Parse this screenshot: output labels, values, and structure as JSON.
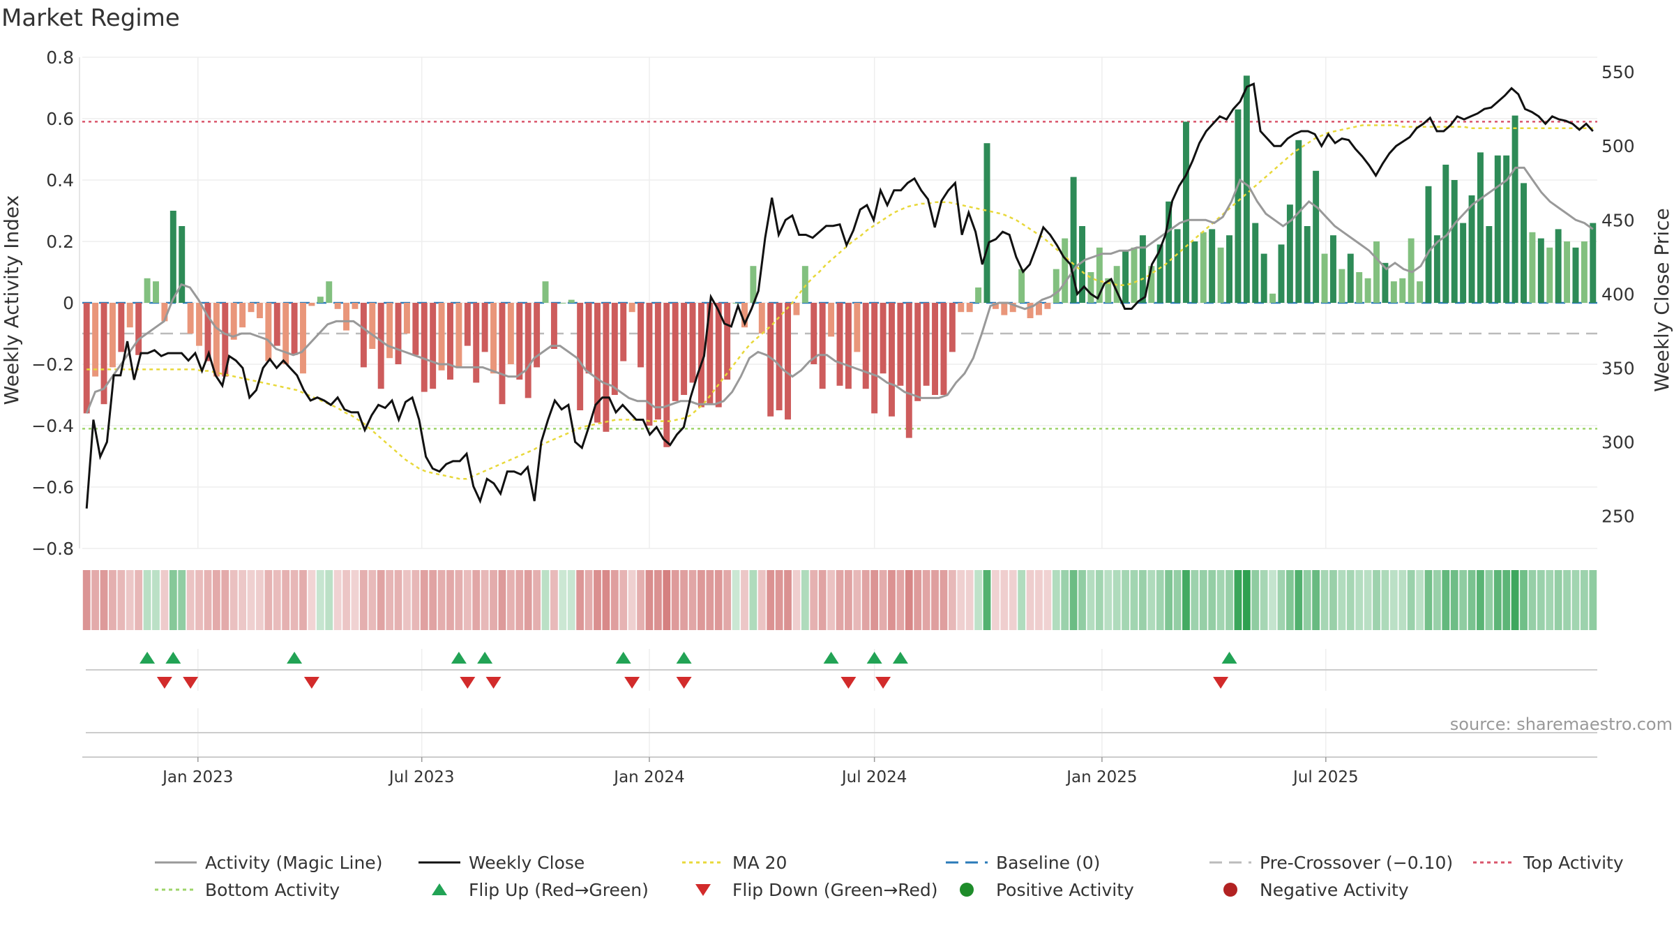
{
  "chart_data": {
    "type": "bar",
    "title": "Market Regime",
    "ylabel_left": "Weekly Activity Index",
    "ylabel_right": "Weekly Close Price",
    "ylim_left": [
      -0.8,
      0.8
    ],
    "yticks_left": [
      0.8,
      0.6,
      0.4,
      0.2,
      0,
      -0.2,
      -0.4,
      -0.6,
      -0.8
    ],
    "ytick_labels_left": [
      "0.8",
      "0.6",
      "0.4",
      "0.2",
      "0",
      "−0.2",
      "−0.4",
      "−0.6",
      "−0.8"
    ],
    "ylim_right": [
      228,
      560
    ],
    "yticks_right": [
      550,
      500,
      450,
      400,
      350,
      300,
      250
    ],
    "ytick_labels_right": [
      "550",
      "500",
      "450",
      "400",
      "350",
      "300",
      "250"
    ],
    "x_start": "2022-10-03",
    "x_interval_days": 7,
    "date_ticks": [
      {
        "date": "2023-01-01",
        "label": "Jan 2023"
      },
      {
        "date": "2023-07-01",
        "label": "Jul 2023"
      },
      {
        "date": "2024-01-01",
        "label": "Jan 2024"
      },
      {
        "date": "2024-07-01",
        "label": "Jul 2024"
      },
      {
        "date": "2025-01-01",
        "label": "Jan 2025"
      },
      {
        "date": "2025-07-01",
        "label": "Jul 2025"
      }
    ],
    "top_activity": 0.59,
    "bottom_activity": -0.41,
    "pre_crossover": -0.1,
    "baseline": 0,
    "activity": [
      -0.36,
      -0.24,
      -0.33,
      -0.21,
      -0.16,
      -0.08,
      -0.17,
      0.08,
      0.07,
      -0.06,
      0.3,
      0.25,
      -0.1,
      -0.14,
      -0.19,
      -0.24,
      -0.24,
      -0.12,
      -0.08,
      -0.03,
      -0.05,
      -0.19,
      -0.14,
      -0.2,
      -0.17,
      -0.23,
      -0.01,
      0.02,
      0.07,
      -0.02,
      -0.09,
      -0.02,
      -0.21,
      -0.15,
      -0.28,
      -0.18,
      -0.2,
      -0.1,
      -0.17,
      -0.29,
      -0.28,
      -0.22,
      -0.25,
      -0.21,
      -0.14,
      -0.26,
      -0.16,
      -0.23,
      -0.33,
      -0.2,
      -0.25,
      -0.31,
      -0.21,
      0.07,
      -0.15,
      0.0,
      0.01,
      -0.35,
      -0.23,
      -0.39,
      -0.42,
      -0.3,
      -0.19,
      -0.03,
      -0.21,
      -0.4,
      -0.38,
      -0.47,
      -0.32,
      -0.3,
      -0.26,
      -0.34,
      -0.33,
      -0.34,
      -0.25,
      0.0,
      -0.08,
      0.12,
      -0.1,
      -0.37,
      -0.35,
      -0.38,
      -0.04,
      0.12,
      -0.2,
      -0.28,
      -0.11,
      -0.27,
      -0.28,
      -0.16,
      -0.28,
      -0.36,
      -0.23,
      -0.37,
      -0.27,
      -0.44,
      -0.32,
      -0.27,
      -0.3,
      -0.3,
      -0.16,
      -0.03,
      -0.03,
      0.05,
      0.52,
      -0.02,
      -0.04,
      -0.03,
      0.11,
      -0.05,
      -0.04,
      -0.02,
      0.11,
      0.21,
      0.41,
      0.25,
      0.1,
      0.18,
      0.08,
      0.12,
      0.17,
      0.18,
      0.22,
      0.12,
      0.19,
      0.33,
      0.24,
      0.59,
      0.2,
      0.23,
      0.24,
      0.18,
      0.22,
      0.63,
      0.74,
      0.26,
      0.16,
      0.03,
      0.19,
      0.32,
      0.53,
      0.25,
      0.43,
      0.16,
      0.22,
      0.11,
      0.16,
      0.1,
      0.08,
      0.2,
      0.13,
      0.07,
      0.08,
      0.21,
      0.07,
      0.38,
      0.22,
      0.45,
      0.4,
      0.26,
      0.35,
      0.49,
      0.25,
      0.48,
      0.48,
      0.61,
      0.39,
      0.23,
      0.21,
      0.18,
      0.24,
      0.2,
      0.18,
      0.2,
      0.26
    ],
    "magic_line": [
      -0.36,
      -0.29,
      -0.28,
      -0.24,
      -0.2,
      -0.16,
      -0.12,
      -0.1,
      -0.08,
      -0.06,
      0.01,
      0.06,
      0.05,
      0.01,
      -0.04,
      -0.08,
      -0.1,
      -0.11,
      -0.1,
      -0.1,
      -0.11,
      -0.12,
      -0.15,
      -0.16,
      -0.17,
      -0.16,
      -0.13,
      -0.1,
      -0.07,
      -0.06,
      -0.06,
      -0.06,
      -0.08,
      -0.1,
      -0.12,
      -0.14,
      -0.15,
      -0.16,
      -0.17,
      -0.18,
      -0.19,
      -0.2,
      -0.2,
      -0.21,
      -0.21,
      -0.21,
      -0.21,
      -0.22,
      -0.23,
      -0.24,
      -0.24,
      -0.22,
      -0.18,
      -0.16,
      -0.14,
      -0.14,
      -0.16,
      -0.18,
      -0.22,
      -0.24,
      -0.26,
      -0.27,
      -0.29,
      -0.31,
      -0.32,
      -0.32,
      -0.34,
      -0.34,
      -0.33,
      -0.32,
      -0.32,
      -0.33,
      -0.33,
      -0.33,
      -0.32,
      -0.29,
      -0.24,
      -0.18,
      -0.16,
      -0.17,
      -0.19,
      -0.22,
      -0.24,
      -0.22,
      -0.19,
      -0.17,
      -0.17,
      -0.19,
      -0.2,
      -0.21,
      -0.22,
      -0.23,
      -0.24,
      -0.26,
      -0.27,
      -0.29,
      -0.3,
      -0.31,
      -0.31,
      -0.31,
      -0.3,
      -0.26,
      -0.23,
      -0.18,
      -0.1,
      -0.01,
      0.0,
      0.0,
      -0.01,
      -0.02,
      -0.01,
      0.01,
      0.02,
      0.04,
      0.08,
      0.12,
      0.14,
      0.15,
      0.16,
      0.16,
      0.17,
      0.17,
      0.18,
      0.18,
      0.2,
      0.22,
      0.24,
      0.26,
      0.27,
      0.27,
      0.27,
      0.26,
      0.28,
      0.33,
      0.4,
      0.38,
      0.33,
      0.29,
      0.27,
      0.25,
      0.27,
      0.3,
      0.33,
      0.31,
      0.28,
      0.25,
      0.23,
      0.21,
      0.19,
      0.17,
      0.14,
      0.11,
      0.13,
      0.11,
      0.1,
      0.12,
      0.17,
      0.2,
      0.22,
      0.26,
      0.29,
      0.32,
      0.34,
      0.36,
      0.38,
      0.4,
      0.44,
      0.44,
      0.4,
      0.36,
      0.33,
      0.31,
      0.29,
      0.27,
      0.26,
      0.24
    ],
    "weekly_close": [
      255,
      315,
      290,
      300,
      345,
      345,
      368,
      342,
      360,
      360,
      362,
      358,
      360,
      360,
      360,
      355,
      360,
      348,
      360,
      345,
      338,
      358,
      355,
      350,
      330,
      335,
      350,
      356,
      350,
      355,
      350,
      345,
      335,
      328,
      330,
      328,
      325,
      330,
      322,
      320,
      320,
      308,
      318,
      325,
      323,
      328,
      315,
      327,
      330,
      315,
      290,
      282,
      280,
      285,
      287,
      287,
      292,
      270,
      260,
      275,
      272,
      265,
      280,
      280,
      278,
      283,
      260,
      300,
      315,
      328,
      322,
      325,
      300,
      296,
      310,
      325,
      330,
      330,
      320,
      325,
      320,
      315,
      315,
      305,
      310,
      302,
      298,
      305,
      310,
      330,
      345,
      358,
      398,
      390,
      380,
      378,
      392,
      380,
      390,
      402,
      438,
      465,
      440,
      450,
      453,
      440,
      440,
      438,
      442,
      446,
      446,
      447,
      433,
      443,
      457,
      460,
      450,
      470,
      460,
      470,
      470,
      475,
      478,
      470,
      464,
      445,
      463,
      470,
      475,
      440,
      455,
      442,
      420,
      435,
      437,
      442,
      440,
      425,
      415,
      420,
      432,
      445,
      440,
      433,
      425,
      420,
      400,
      405,
      400,
      397,
      407,
      410,
      400,
      390,
      390,
      395,
      398,
      420,
      428,
      440,
      463,
      473,
      480,
      490,
      502,
      510,
      515,
      520,
      518,
      525,
      530,
      540,
      542,
      510,
      505,
      500,
      500,
      505,
      508,
      510,
      510,
      508,
      500,
      508,
      502,
      505,
      504,
      498,
      493,
      487,
      480,
      488,
      495,
      500,
      503,
      506,
      512,
      515,
      519,
      510,
      510,
      514,
      520,
      518,
      520,
      522,
      525,
      526,
      530,
      534,
      539,
      535,
      525,
      523,
      520,
      515,
      520,
      518,
      517,
      515,
      511,
      515,
      510
    ],
    "ma20": [
      349,
      349,
      349,
      349,
      349,
      349,
      349,
      349,
      349,
      349,
      349,
      349,
      349,
      349,
      349,
      349,
      349,
      348,
      348,
      347,
      346,
      345,
      344,
      343,
      342,
      341,
      340,
      339,
      338,
      337,
      336,
      335,
      333,
      331,
      329,
      327,
      325,
      323,
      320,
      318,
      315,
      312,
      308,
      304,
      300,
      296,
      292,
      288,
      285,
      282,
      280,
      279,
      278,
      277,
      276,
      275,
      275,
      277,
      279,
      281,
      283,
      285,
      287,
      289,
      291,
      293,
      295,
      298,
      300,
      302,
      304,
      306,
      308,
      310,
      311,
      312,
      313,
      314,
      315,
      315,
      315,
      315,
      315,
      314,
      314,
      314,
      314,
      315,
      316,
      318,
      322,
      326,
      332,
      338,
      344,
      350,
      356,
      362,
      367,
      371,
      375,
      379,
      384,
      389,
      394,
      400,
      406,
      411,
      415,
      420,
      424,
      428,
      432,
      436,
      439,
      443,
      446,
      449,
      452,
      455,
      457,
      459,
      460,
      461,
      461,
      462,
      462,
      462,
      461,
      460,
      459,
      458,
      457,
      456,
      455,
      454,
      452,
      450,
      447,
      444,
      441,
      438,
      434,
      430,
      426,
      422,
      418,
      414,
      411,
      409,
      408,
      407,
      406,
      406,
      407,
      409,
      411,
      414,
      417,
      420,
      424,
      428,
      432,
      436,
      440,
      444,
      448,
      452,
      456,
      460,
      464,
      468,
      472,
      476,
      480,
      484,
      488,
      492,
      496,
      499,
      502,
      505,
      507,
      509,
      510,
      511,
      512,
      513,
      514,
      514,
      514,
      514,
      514,
      514,
      513,
      513,
      513,
      513,
      513,
      513,
      513,
      513,
      513,
      513,
      512,
      512,
      512,
      512,
      512,
      512,
      512,
      512,
      512,
      512,
      512,
      512,
      512,
      512,
      512,
      512,
      512,
      512,
      512
    ],
    "flip_up_weeks": [
      7,
      10,
      24,
      43,
      46,
      62,
      69,
      86,
      91,
      94,
      132
    ],
    "flip_down_weeks": [
      9,
      12,
      26,
      44,
      47,
      63,
      69,
      88,
      92,
      131
    ],
    "annotations": [
      "source: sharemaestro.com"
    ],
    "legend_placement": "bottom",
    "legend": [
      {
        "label": "Activity (Magic Line)",
        "style": "line",
        "color": "#999999"
      },
      {
        "label": "Weekly Close",
        "style": "line",
        "color": "#111111"
      },
      {
        "label": "MA 20",
        "style": "dotted",
        "color": "#e8d83a"
      },
      {
        "label": "Baseline (0)",
        "style": "dashed",
        "color": "#2a7ab8"
      },
      {
        "label": "Pre-Crossover (−0.10)",
        "style": "dashed",
        "color": "#bbbbbb"
      },
      {
        "label": "Top Activity",
        "style": "dotted",
        "color": "#d9556b"
      },
      {
        "label": "Bottom Activity",
        "style": "dotted",
        "color": "#9ed46a"
      },
      {
        "label": "Flip Up (Red→Green)",
        "style": "triangle-up",
        "color": "#22a355"
      },
      {
        "label": "Flip Down (Green→Red)",
        "style": "triangle-down",
        "color": "#d22b2b"
      },
      {
        "label": "Positive Activity",
        "style": "dot",
        "color": "#1e8c2a"
      },
      {
        "label": "Negative Activity",
        "style": "dot",
        "color": "#b22222"
      }
    ],
    "colors": {
      "positive_strong": "#2e8b57",
      "positive_light": "#82c07f",
      "negative_strong": "#cd5c5c",
      "negative_light": "#e9967a",
      "grid": "#eeeeee"
    }
  }
}
